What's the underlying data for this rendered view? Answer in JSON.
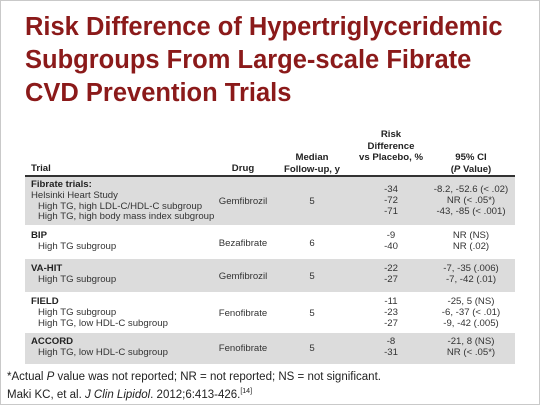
{
  "title": {
    "line1": "Risk Difference of Hypertriglyceridemic",
    "line2": "Subgroups From Large-scale Fibrate",
    "line3": "CVD Prevention Trials"
  },
  "headers": {
    "trial": "Trial",
    "drug": "Drug",
    "followup_1": "Median",
    "followup_2": "Follow-up, y",
    "risk_1": "Risk",
    "risk_2": "Difference",
    "risk_3": "vs Placebo, %",
    "ci_1": "95% CI",
    "ci_2": "(P Value)"
  },
  "rows": [
    {
      "lines": [
        "Fibrate trials:",
        "Helsinki Heart Study",
        "High TG, high LDL-C/HDL-C subgroup",
        "High TG, high body mass index subgroup"
      ],
      "drug": "Gemfibrozil",
      "followup": "5",
      "risk": [
        "-34",
        "-72",
        "-71"
      ],
      "ci": [
        "-8.2, -52.6 (< .02)",
        "NR (< .05*)",
        "-43, -85 (< .001)"
      ]
    },
    {
      "lines": [
        "BIP",
        "High TG subgroup"
      ],
      "drug": "Bezafibrate",
      "followup": "6",
      "risk": [
        "-9",
        "-40"
      ],
      "ci": [
        "NR (NS)",
        "NR (.02)"
      ]
    },
    {
      "lines": [
        "VA-HIT",
        "High TG subgroup"
      ],
      "drug": "Gemfibrozil",
      "followup": "5",
      "risk": [
        "-22",
        "-27"
      ],
      "ci": [
        "-7, -35 (.006)",
        "-7, -42 (.01)"
      ]
    },
    {
      "lines": [
        "FIELD",
        "High TG subgroup",
        "High TG, low HDL-C subgroup"
      ],
      "drug": "Fenofibrate",
      "followup": "5",
      "risk": [
        "-11",
        "-23",
        "-27"
      ],
      "ci": [
        "-25, 5 (NS)",
        "-6, -37 (< .01)",
        "-9, -42 (.005)"
      ]
    },
    {
      "lines": [
        "ACCORD",
        "High TG, low HDL-C subgroup"
      ],
      "drug": "Fenofibrate",
      "followup": "5",
      "risk": [
        "-8",
        "-31"
      ],
      "ci": [
        "-21, 8 (NS)",
        "NR (< .05*)"
      ]
    }
  ],
  "footnote": {
    "star": "*Actual ",
    "p": "P",
    "rest": " value was not reported; NR = not reported; NS = not significant."
  },
  "reference": {
    "authors": "Maki KC, et al. ",
    "journal": "J Clin Lipidol",
    "details": ". 2012;6:413-426.",
    "cite": "[14]"
  },
  "colors": {
    "title": "#8b1a1a",
    "row_shade": "#dcdcdc",
    "text": "#333333"
  }
}
